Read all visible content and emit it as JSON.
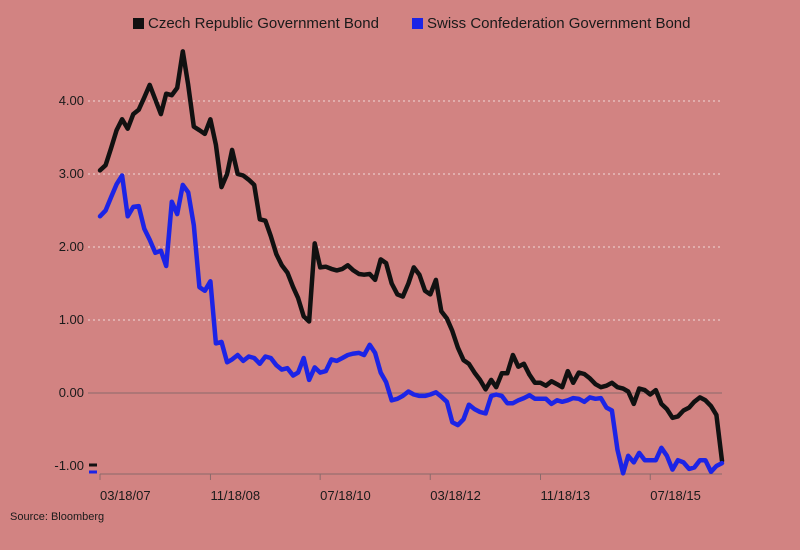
{
  "source": "Source: Bloomberg",
  "chart_data": {
    "type": "line",
    "title": "",
    "xlabel": "",
    "ylabel": "",
    "ylim": [
      -1.0,
      4.7
    ],
    "y_ticks": [
      {
        "value": 4,
        "label": "4.00"
      },
      {
        "value": 3,
        "label": "3.00"
      },
      {
        "value": 2,
        "label": "2.00"
      },
      {
        "value": 1,
        "label": "1.00"
      },
      {
        "value": 0,
        "label": "0.00"
      },
      {
        "value": -1,
        "label": "-1.00"
      }
    ],
    "xlim": [
      "2007-03-18",
      "2016-08-18"
    ],
    "x_ticks": [
      {
        "value": "2007-03-18",
        "label": "03/18/07"
      },
      {
        "value": "2008-11-18",
        "label": "11/18/08"
      },
      {
        "value": "2010-07-18",
        "label": "07/18/10"
      },
      {
        "value": "2012-03-18",
        "label": "03/18/12"
      },
      {
        "value": "2013-11-18",
        "label": "11/18/13"
      },
      {
        "value": "2015-07-18",
        "label": "07/18/15"
      }
    ],
    "grid": true,
    "legend_position": "top",
    "series": [
      {
        "name": "Czech Republic Government Bond",
        "color": "#111111",
        "points": [
          [
            "2007-03-18",
            3.05
          ],
          [
            "2007-04-18",
            3.12
          ],
          [
            "2007-05-18",
            3.35
          ],
          [
            "2007-06-18",
            3.6
          ],
          [
            "2007-07-18",
            3.75
          ],
          [
            "2007-08-18",
            3.62
          ],
          [
            "2007-09-18",
            3.82
          ],
          [
            "2007-10-18",
            3.88
          ],
          [
            "2007-11-18",
            4.05
          ],
          [
            "2007-12-18",
            4.22
          ],
          [
            "2008-01-18",
            4.02
          ],
          [
            "2008-02-18",
            3.82
          ],
          [
            "2008-03-18",
            4.1
          ],
          [
            "2008-04-18",
            4.08
          ],
          [
            "2008-05-18",
            4.18
          ],
          [
            "2008-06-18",
            4.68
          ],
          [
            "2008-07-18",
            4.22
          ],
          [
            "2008-08-18",
            3.65
          ],
          [
            "2008-09-18",
            3.6
          ],
          [
            "2008-10-18",
            3.55
          ],
          [
            "2008-11-18",
            3.75
          ],
          [
            "2008-12-18",
            3.4
          ],
          [
            "2009-01-18",
            2.82
          ],
          [
            "2009-02-18",
            3.0
          ],
          [
            "2009-03-18",
            3.33
          ],
          [
            "2009-04-18",
            3.0
          ],
          [
            "2009-05-18",
            2.98
          ],
          [
            "2009-06-18",
            2.92
          ],
          [
            "2009-07-18",
            2.85
          ],
          [
            "2009-08-18",
            2.38
          ],
          [
            "2009-09-18",
            2.36
          ],
          [
            "2009-10-18",
            2.15
          ],
          [
            "2009-11-18",
            1.9
          ],
          [
            "2009-12-18",
            1.75
          ],
          [
            "2010-01-18",
            1.65
          ],
          [
            "2010-02-18",
            1.45
          ],
          [
            "2010-03-18",
            1.3
          ],
          [
            "2010-04-18",
            1.05
          ],
          [
            "2010-05-18",
            0.98
          ],
          [
            "2010-06-18",
            2.05
          ],
          [
            "2010-07-18",
            1.72
          ],
          [
            "2010-08-18",
            1.73
          ],
          [
            "2010-09-18",
            1.7
          ],
          [
            "2010-10-18",
            1.68
          ],
          [
            "2010-11-18",
            1.7
          ],
          [
            "2010-12-18",
            1.75
          ],
          [
            "2011-01-18",
            1.68
          ],
          [
            "2011-02-18",
            1.63
          ],
          [
            "2011-03-18",
            1.62
          ],
          [
            "2011-04-18",
            1.63
          ],
          [
            "2011-05-18",
            1.55
          ],
          [
            "2011-06-18",
            1.83
          ],
          [
            "2011-07-18",
            1.78
          ],
          [
            "2011-08-18",
            1.5
          ],
          [
            "2011-09-18",
            1.35
          ],
          [
            "2011-10-18",
            1.32
          ],
          [
            "2011-11-18",
            1.5
          ],
          [
            "2011-12-18",
            1.72
          ],
          [
            "2012-01-18",
            1.62
          ],
          [
            "2012-02-18",
            1.4
          ],
          [
            "2012-03-18",
            1.35
          ],
          [
            "2012-04-18",
            1.55
          ],
          [
            "2012-05-18",
            1.12
          ],
          [
            "2012-06-18",
            1.02
          ],
          [
            "2012-07-18",
            0.85
          ],
          [
            "2012-08-18",
            0.62
          ],
          [
            "2012-09-18",
            0.45
          ],
          [
            "2012-10-18",
            0.4
          ],
          [
            "2012-11-18",
            0.28
          ],
          [
            "2012-12-18",
            0.18
          ],
          [
            "2013-01-18",
            0.05
          ],
          [
            "2013-02-18",
            0.18
          ],
          [
            "2013-03-18",
            0.08
          ],
          [
            "2013-04-18",
            0.27
          ],
          [
            "2013-05-18",
            0.27
          ],
          [
            "2013-06-18",
            0.52
          ],
          [
            "2013-07-18",
            0.36
          ],
          [
            "2013-08-18",
            0.4
          ],
          [
            "2013-09-18",
            0.25
          ],
          [
            "2013-10-18",
            0.14
          ],
          [
            "2013-11-18",
            0.14
          ],
          [
            "2013-12-18",
            0.1
          ],
          [
            "2014-01-18",
            0.16
          ],
          [
            "2014-02-18",
            0.12
          ],
          [
            "2014-03-18",
            0.08
          ],
          [
            "2014-04-18",
            0.3
          ],
          [
            "2014-05-18",
            0.14
          ],
          [
            "2014-06-18",
            0.28
          ],
          [
            "2014-07-18",
            0.26
          ],
          [
            "2014-08-18",
            0.2
          ],
          [
            "2014-09-18",
            0.12
          ],
          [
            "2014-10-18",
            0.08
          ],
          [
            "2014-11-18",
            0.1
          ],
          [
            "2014-12-18",
            0.14
          ],
          [
            "2015-01-18",
            0.08
          ],
          [
            "2015-02-18",
            0.06
          ],
          [
            "2015-03-18",
            0.02
          ],
          [
            "2015-04-18",
            -0.15
          ],
          [
            "2015-05-18",
            0.06
          ],
          [
            "2015-06-18",
            0.04
          ],
          [
            "2015-07-18",
            -0.02
          ],
          [
            "2015-08-18",
            0.04
          ],
          [
            "2015-09-18",
            -0.15
          ],
          [
            "2015-10-18",
            -0.22
          ],
          [
            "2015-11-18",
            -0.34
          ],
          [
            "2015-12-18",
            -0.32
          ],
          [
            "2016-01-18",
            -0.24
          ],
          [
            "2016-02-18",
            -0.2
          ],
          [
            "2016-03-18",
            -0.12
          ],
          [
            "2016-04-18",
            -0.06
          ],
          [
            "2016-05-18",
            -0.1
          ],
          [
            "2016-06-18",
            -0.18
          ],
          [
            "2016-07-18",
            -0.3
          ],
          [
            "2016-08-18",
            -0.93
          ]
        ]
      },
      {
        "name": "Swiss Confederation Government Bond",
        "color": "#1c24e6",
        "points": [
          [
            "2007-03-18",
            2.42
          ],
          [
            "2007-04-18",
            2.5
          ],
          [
            "2007-05-18",
            2.68
          ],
          [
            "2007-06-18",
            2.86
          ],
          [
            "2007-07-18",
            2.98
          ],
          [
            "2007-08-18",
            2.42
          ],
          [
            "2007-09-18",
            2.55
          ],
          [
            "2007-10-18",
            2.56
          ],
          [
            "2007-11-18",
            2.25
          ],
          [
            "2007-12-18",
            2.1
          ],
          [
            "2008-01-18",
            1.92
          ],
          [
            "2008-02-18",
            1.95
          ],
          [
            "2008-03-18",
            1.74
          ],
          [
            "2008-04-18",
            2.62
          ],
          [
            "2008-05-18",
            2.45
          ],
          [
            "2008-06-18",
            2.85
          ],
          [
            "2008-07-18",
            2.75
          ],
          [
            "2008-08-18",
            2.3
          ],
          [
            "2008-09-18",
            1.45
          ],
          [
            "2008-10-18",
            1.4
          ],
          [
            "2008-11-18",
            1.53
          ],
          [
            "2008-12-18",
            0.68
          ],
          [
            "2009-01-18",
            0.7
          ],
          [
            "2009-02-18",
            0.42
          ],
          [
            "2009-03-18",
            0.46
          ],
          [
            "2009-04-18",
            0.52
          ],
          [
            "2009-05-18",
            0.44
          ],
          [
            "2009-06-18",
            0.5
          ],
          [
            "2009-07-18",
            0.48
          ],
          [
            "2009-08-18",
            0.4
          ],
          [
            "2009-09-18",
            0.5
          ],
          [
            "2009-10-18",
            0.48
          ],
          [
            "2009-11-18",
            0.38
          ],
          [
            "2009-12-18",
            0.32
          ],
          [
            "2010-01-18",
            0.34
          ],
          [
            "2010-02-18",
            0.24
          ],
          [
            "2010-03-18",
            0.28
          ],
          [
            "2010-04-18",
            0.48
          ],
          [
            "2010-05-18",
            0.18
          ],
          [
            "2010-06-18",
            0.35
          ],
          [
            "2010-07-18",
            0.28
          ],
          [
            "2010-08-18",
            0.3
          ],
          [
            "2010-09-18",
            0.46
          ],
          [
            "2010-10-18",
            0.44
          ],
          [
            "2010-11-18",
            0.48
          ],
          [
            "2010-12-18",
            0.52
          ],
          [
            "2011-01-18",
            0.54
          ],
          [
            "2011-02-18",
            0.55
          ],
          [
            "2011-03-18",
            0.52
          ],
          [
            "2011-04-18",
            0.66
          ],
          [
            "2011-05-18",
            0.55
          ],
          [
            "2011-06-18",
            0.28
          ],
          [
            "2011-07-18",
            0.15
          ],
          [
            "2011-08-18",
            -0.1
          ],
          [
            "2011-09-18",
            -0.08
          ],
          [
            "2011-10-18",
            -0.04
          ],
          [
            "2011-11-18",
            0.02
          ],
          [
            "2011-12-18",
            -0.02
          ],
          [
            "2012-01-18",
            -0.04
          ],
          [
            "2012-02-18",
            -0.04
          ],
          [
            "2012-03-18",
            -0.02
          ],
          [
            "2012-04-18",
            0.01
          ],
          [
            "2012-05-18",
            -0.05
          ],
          [
            "2012-06-18",
            -0.12
          ],
          [
            "2012-07-18",
            -0.4
          ],
          [
            "2012-08-18",
            -0.44
          ],
          [
            "2012-09-18",
            -0.36
          ],
          [
            "2012-10-18",
            -0.16
          ],
          [
            "2012-11-18",
            -0.22
          ],
          [
            "2012-12-18",
            -0.26
          ],
          [
            "2013-01-18",
            -0.28
          ],
          [
            "2013-02-18",
            -0.04
          ],
          [
            "2013-03-18",
            -0.02
          ],
          [
            "2013-04-18",
            -0.04
          ],
          [
            "2013-05-18",
            -0.14
          ],
          [
            "2013-06-18",
            -0.14
          ],
          [
            "2013-07-18",
            -0.1
          ],
          [
            "2013-08-18",
            -0.07
          ],
          [
            "2013-09-18",
            -0.03
          ],
          [
            "2013-10-18",
            -0.08
          ],
          [
            "2013-11-18",
            -0.08
          ],
          [
            "2013-12-18",
            -0.08
          ],
          [
            "2014-01-18",
            -0.15
          ],
          [
            "2014-02-18",
            -0.1
          ],
          [
            "2014-03-18",
            -0.12
          ],
          [
            "2014-04-18",
            -0.1
          ],
          [
            "2014-05-18",
            -0.07
          ],
          [
            "2014-06-18",
            -0.08
          ],
          [
            "2014-07-18",
            -0.12
          ],
          [
            "2014-08-18",
            -0.06
          ],
          [
            "2014-09-18",
            -0.08
          ],
          [
            "2014-10-18",
            -0.07
          ],
          [
            "2014-11-18",
            -0.2
          ],
          [
            "2014-12-18",
            -0.24
          ],
          [
            "2015-01-18",
            -0.78
          ],
          [
            "2015-02-18",
            -1.1
          ],
          [
            "2015-03-18",
            -0.86
          ],
          [
            "2015-04-18",
            -0.95
          ],
          [
            "2015-05-18",
            -0.82
          ],
          [
            "2015-06-18",
            -0.92
          ],
          [
            "2015-07-18",
            -0.92
          ],
          [
            "2015-08-18",
            -0.92
          ],
          [
            "2015-09-18",
            -0.75
          ],
          [
            "2015-10-18",
            -0.86
          ],
          [
            "2015-11-18",
            -1.05
          ],
          [
            "2015-12-18",
            -0.92
          ],
          [
            "2016-01-18",
            -0.95
          ],
          [
            "2016-02-18",
            -1.04
          ],
          [
            "2016-03-18",
            -1.02
          ],
          [
            "2016-04-18",
            -0.92
          ],
          [
            "2016-05-18",
            -0.92
          ],
          [
            "2016-06-18",
            -1.08
          ],
          [
            "2016-07-18",
            -1.0
          ],
          [
            "2016-08-18",
            -0.96
          ]
        ]
      }
    ]
  }
}
